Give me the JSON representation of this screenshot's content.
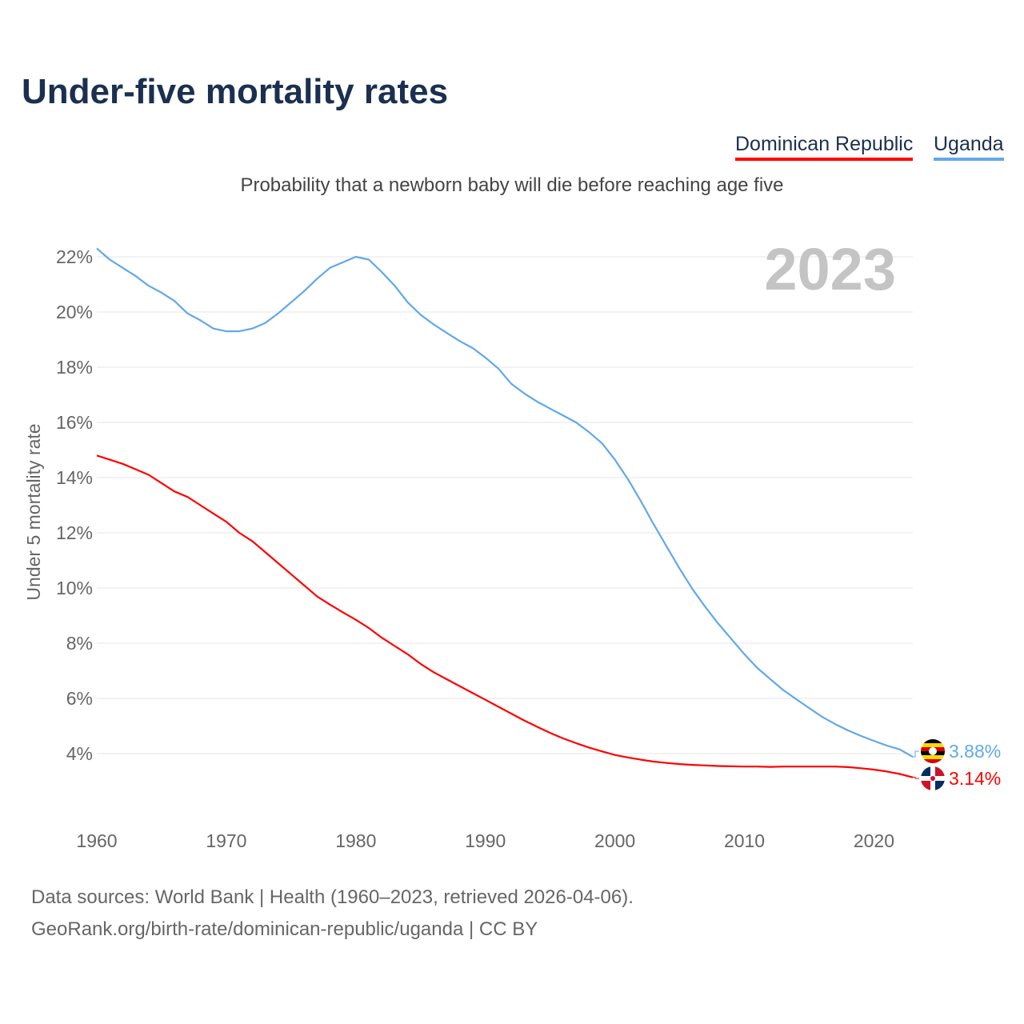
{
  "title": "Under-five mortality rates",
  "subtitle": "Probability that a newborn baby will die before reaching age five",
  "legend": [
    {
      "label": "Dominican Republic",
      "color": "#ff0000"
    },
    {
      "label": "Uganda",
      "color": "#61a8ea"
    }
  ],
  "footer": {
    "line1": "Data sources: World Bank | Health (1960–2023, retrieved 2026-04-06).",
    "line2": "GeoRank.org/birth-rate/dominican-republic/uganda | CC BY"
  },
  "chart_data": {
    "type": "line",
    "title": "Under-five mortality rates",
    "ylabel": "Under 5 mortality rate",
    "xlabel": "",
    "year_watermark": "2023",
    "xlim": [
      1960,
      2023
    ],
    "ylim": [
      0,
      23
    ],
    "yticks": [
      4,
      6,
      8,
      10,
      12,
      14,
      16,
      18,
      20,
      22
    ],
    "ytick_labels": [
      "4%",
      "6%",
      "8%",
      "10%",
      "12%",
      "14%",
      "16%",
      "18%",
      "20%",
      "22%"
    ],
    "xticks": [
      1960,
      1970,
      1980,
      1990,
      2000,
      2010,
      2020
    ],
    "xtick_labels": [
      "1960",
      "1970",
      "1980",
      "1990",
      "2000",
      "2010",
      "2020"
    ],
    "grid": true,
    "legend_position": "top-right",
    "x_start": 1960,
    "series": [
      {
        "name": "Uganda",
        "color": "#61a8ea",
        "end_label": "3.88%",
        "values": [
          22.3,
          21.9,
          21.6,
          21.3,
          20.95,
          20.7,
          20.4,
          19.95,
          19.7,
          19.4,
          19.3,
          19.3,
          19.4,
          19.6,
          19.95,
          20.35,
          20.75,
          21.2,
          21.6,
          21.8,
          22.0,
          21.9,
          21.45,
          20.95,
          20.35,
          19.9,
          19.55,
          19.25,
          18.95,
          18.7,
          18.35,
          17.95,
          17.4,
          17.05,
          16.75,
          16.5,
          16.25,
          16.0,
          15.65,
          15.25,
          14.65,
          13.95,
          13.15,
          12.3,
          11.5,
          10.7,
          9.95,
          9.3,
          8.7,
          8.15,
          7.6,
          7.1,
          6.7,
          6.3,
          5.97,
          5.65,
          5.33,
          5.07,
          4.84,
          4.64,
          4.46,
          4.29,
          4.15,
          3.88
        ]
      },
      {
        "name": "Dominican Republic",
        "color": "#ff0000",
        "end_label": "3.14%",
        "values": [
          14.8,
          14.65,
          14.5,
          14.3,
          14.1,
          13.8,
          13.5,
          13.3,
          13.0,
          12.7,
          12.4,
          12.0,
          11.7,
          11.3,
          10.9,
          10.5,
          10.1,
          9.7,
          9.4,
          9.12,
          8.85,
          8.55,
          8.2,
          7.9,
          7.6,
          7.25,
          6.95,
          6.7,
          6.45,
          6.2,
          5.95,
          5.7,
          5.45,
          5.2,
          4.97,
          4.75,
          4.55,
          4.38,
          4.22,
          4.08,
          3.95,
          3.86,
          3.78,
          3.71,
          3.66,
          3.62,
          3.59,
          3.57,
          3.55,
          3.54,
          3.53,
          3.53,
          3.52,
          3.53,
          3.53,
          3.53,
          3.53,
          3.53,
          3.51,
          3.47,
          3.42,
          3.35,
          3.26,
          3.14
        ]
      }
    ]
  }
}
